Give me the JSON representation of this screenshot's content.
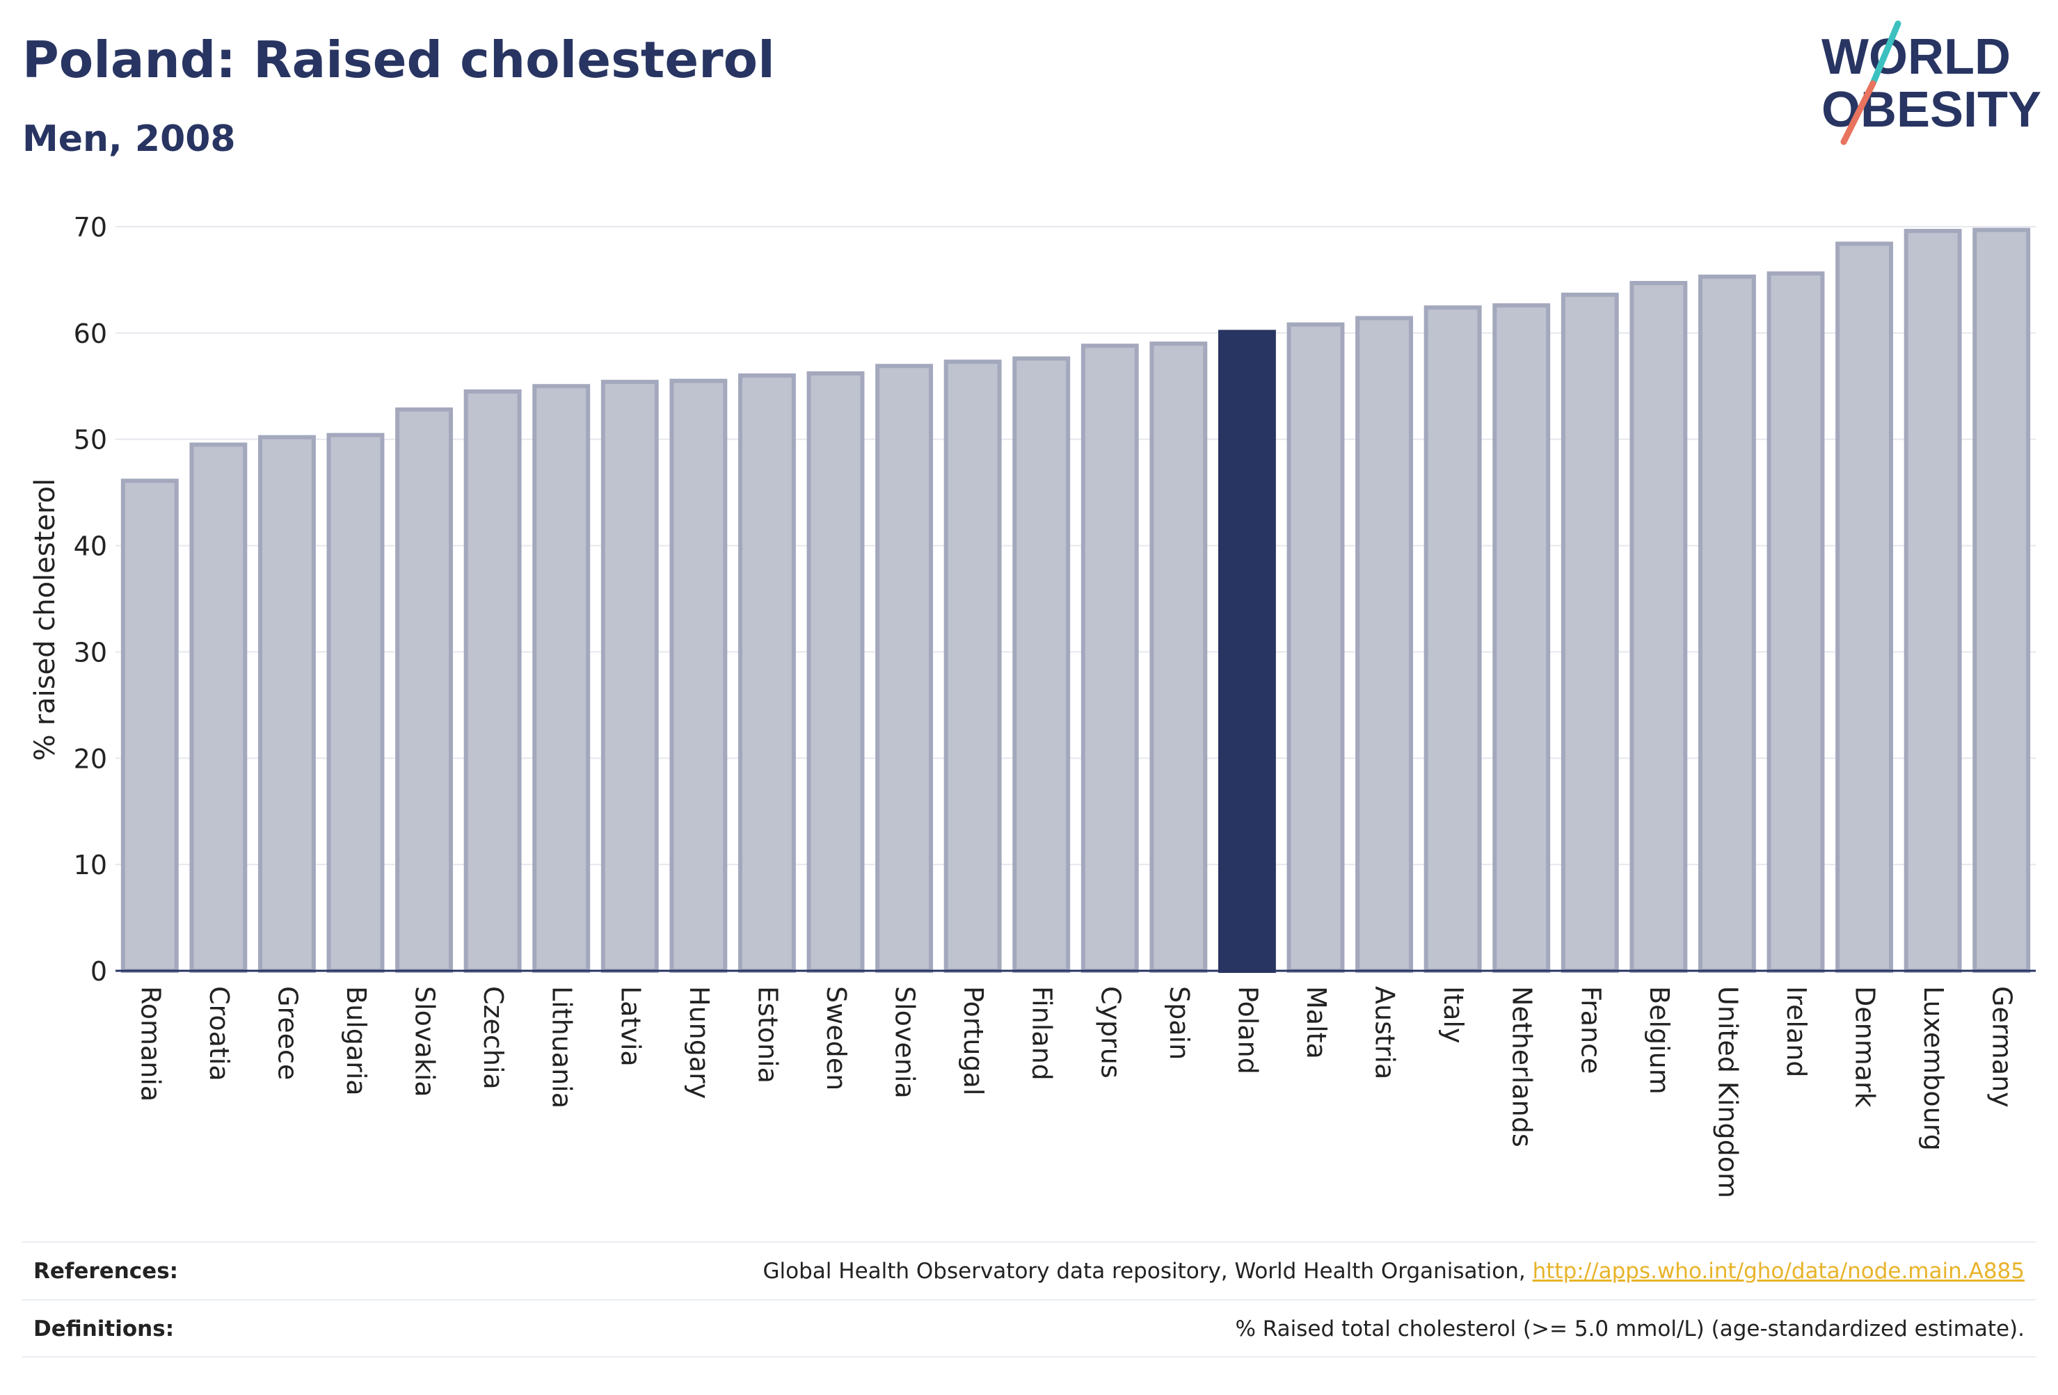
{
  "header": {
    "title": "Poland: Raised cholesterol",
    "subtitle": "Men, 2008"
  },
  "logo": {
    "line1": "WORLD",
    "line2": "OBESITY",
    "accent_teal": "#3cc0c0",
    "accent_coral": "#e8735f",
    "brand_color": "#283562"
  },
  "chart_data": {
    "type": "bar",
    "title": "Poland: Raised cholesterol",
    "subtitle": "Men, 2008",
    "xlabel": "",
    "ylabel": "% raised cholesterol",
    "ylim": [
      0,
      70
    ],
    "yticks": [
      0,
      10,
      20,
      30,
      40,
      50,
      60,
      70
    ],
    "grid": true,
    "highlight": "Poland",
    "bar_color": "#bfc2cf",
    "bar_edge_color": "#a3a8bd",
    "highlight_color": "#283562",
    "categories": [
      "Romania",
      "Croatia",
      "Greece",
      "Bulgaria",
      "Slovakia",
      "Czechia",
      "Lithuania",
      "Latvia",
      "Hungary",
      "Estonia",
      "Sweden",
      "Slovenia",
      "Portugal",
      "Finland",
      "Cyprus",
      "Spain",
      "Poland",
      "Malta",
      "Austria",
      "Italy",
      "Netherlands",
      "France",
      "Belgium",
      "United Kingdom",
      "Ireland",
      "Denmark",
      "Luxembourg",
      "Germany"
    ],
    "values": [
      46.1,
      49.5,
      50.2,
      50.4,
      52.8,
      54.5,
      55.0,
      55.4,
      55.5,
      56.0,
      56.2,
      56.9,
      57.3,
      57.6,
      58.8,
      59.0,
      60.1,
      60.8,
      61.4,
      62.4,
      62.6,
      63.6,
      64.7,
      65.3,
      65.6,
      68.4,
      69.6,
      69.7
    ]
  },
  "footer": {
    "references_label": "References:",
    "references_text": "Global Health Observatory data repository, World Health Organisation, ",
    "references_link": "http://apps.who.int/gho/data/node.main.A885",
    "definitions_label": "Definitions:",
    "definitions_text": "% Raised total cholesterol (>= 5.0 mmol/L) (age-standardized estimate)."
  }
}
